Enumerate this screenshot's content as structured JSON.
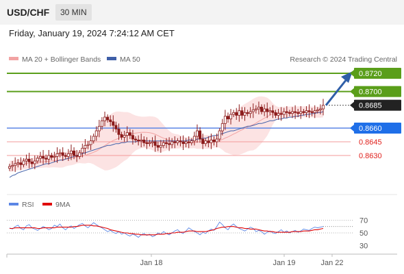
{
  "header": {
    "symbol": "USD/CHF",
    "timeframe": "30 MIN",
    "datetime": "Friday, January 19, 2024 7:24:12 AM CET"
  },
  "legend": {
    "ma20_label": "MA 20 + Bollinger Bands",
    "ma50_label": "MA 50",
    "credit": "Research © 2024 Trading Central",
    "rsi_label": "RSI",
    "rsi_ma_label": "9MA"
  },
  "colors": {
    "resistance": "#5a9e1a",
    "support": "#5b86e5",
    "target_line": "#f39a9a",
    "last_price": "#222222",
    "candle": "#8b1a1a",
    "ma20": "#f2a3a3",
    "ma50": "#3f5fa8",
    "bollinger_fill": "#fbdede",
    "arrow": "#2f5fa8",
    "rsi": "#5b86e5",
    "rsi_ma": "#e00000"
  },
  "chart_data": [
    {
      "type": "candlestick",
      "x_ticks": [
        "Jan 18",
        "Jan 19",
        "Jan 22"
      ],
      "levels": [
        {
          "price": 0.872,
          "label": "0.8720",
          "kind": "resistance"
        },
        {
          "price": 0.87,
          "label": "0.8700",
          "kind": "resistance"
        },
        {
          "price": 0.8685,
          "label": "0.8685",
          "kind": "last"
        },
        {
          "price": 0.866,
          "label": "0.8660",
          "kind": "support"
        },
        {
          "price": 0.8645,
          "label": "0.8645",
          "kind": "target"
        },
        {
          "price": 0.863,
          "label": "0.8630",
          "kind": "target"
        }
      ],
      "close": [
        0.8618,
        0.8619,
        0.8621,
        0.8622,
        0.862,
        0.8624,
        0.8626,
        0.8623,
        0.8621,
        0.8624,
        0.8627,
        0.8629,
        0.8627,
        0.8626,
        0.863,
        0.8628,
        0.8629,
        0.8632,
        0.8633,
        0.863,
        0.8629,
        0.8632,
        0.8635,
        0.863,
        0.8629,
        0.8633,
        0.8638,
        0.8641,
        0.8642,
        0.8646,
        0.8651,
        0.8657,
        0.8662,
        0.8668,
        0.8672,
        0.8669,
        0.8667,
        0.8663,
        0.8659,
        0.8653,
        0.865,
        0.8652,
        0.8655,
        0.8652,
        0.8648,
        0.8647,
        0.8646,
        0.8647,
        0.8644,
        0.8643,
        0.8644,
        0.8645,
        0.8641,
        0.8639,
        0.8641,
        0.8644,
        0.8643,
        0.8642,
        0.8645,
        0.8644,
        0.8646,
        0.8645,
        0.8643,
        0.8645,
        0.8644,
        0.8646,
        0.8651,
        0.8657,
        0.8648,
        0.8643,
        0.8646,
        0.8644,
        0.8647,
        0.8645,
        0.8648,
        0.8657,
        0.8665,
        0.8673,
        0.867,
        0.8675,
        0.8677,
        0.8674,
        0.8679,
        0.8674,
        0.8677,
        0.8676,
        0.8678,
        0.868,
        0.8681,
        0.8683,
        0.8678,
        0.8681,
        0.8678,
        0.8679,
        0.8677,
        0.8674,
        0.8676,
        0.8675,
        0.8678,
        0.8677,
        0.8676,
        0.8678,
        0.8677,
        0.8676,
        0.8678,
        0.8677,
        0.8679,
        0.8678,
        0.8677,
        0.8679,
        0.868,
        0.8681,
        0.8685
      ],
      "ma50": [
        0.8606,
        0.8608,
        0.8609,
        0.8611,
        0.8612,
        0.8613,
        0.8614,
        0.8615,
        0.8616,
        0.8617,
        0.8618,
        0.8619,
        0.862,
        0.8621,
        0.8621,
        0.8622,
        0.8623,
        0.8624,
        0.8625,
        0.8625,
        0.8626,
        0.8627,
        0.8628,
        0.8629,
        0.863,
        0.8631,
        0.8632,
        0.8633,
        0.8634,
        0.8635,
        0.8636,
        0.8637,
        0.8638,
        0.8639,
        0.864,
        0.8641,
        0.8641,
        0.8642,
        0.8643,
        0.8643,
        0.8644,
        0.8644,
        0.8645,
        0.8645,
        0.8645,
        0.8645,
        0.8646,
        0.8646,
        0.8646,
        0.8646,
        0.8646,
        0.8646,
        0.8646,
        0.8646,
        0.8646,
        0.8646,
        0.8646,
        0.8646,
        0.8646,
        0.8646,
        0.8646,
        0.8646,
        0.8646,
        0.8646,
        0.8647,
        0.8647,
        0.8647,
        0.8648,
        0.8648,
        0.8649,
        0.8649,
        0.865,
        0.8651,
        0.8652,
        0.8652,
        0.8653,
        0.8654,
        0.8655,
        0.8656,
        0.8657,
        0.8657,
        0.8658,
        0.8659,
        0.866,
        0.8661,
        0.8662,
        0.8662,
        0.8663,
        0.8664,
        0.8665,
        0.8665,
        0.8666,
        0.8667,
        0.8668,
        0.8668,
        0.8669,
        0.867,
        0.867,
        0.8671,
        0.8671,
        0.8672,
        0.8672,
        0.8673,
        0.8673,
        0.8674,
        0.8674,
        0.8675,
        0.8675,
        0.8676,
        0.8676,
        0.8677,
        0.8677,
        0.8678
      ]
    },
    {
      "type": "line",
      "name": "RSI",
      "y_ticks": [
        70,
        50,
        30
      ],
      "ylim": [
        20,
        80
      ],
      "rsi": [
        58,
        56,
        60,
        62,
        57,
        55,
        61,
        63,
        58,
        56,
        54,
        57,
        60,
        58,
        55,
        57,
        62,
        60,
        64,
        58,
        55,
        59,
        61,
        57,
        60,
        63,
        65,
        61,
        58,
        62,
        66,
        63,
        60,
        58,
        55,
        52,
        54,
        51,
        49,
        52,
        48,
        50,
        47,
        45,
        48,
        46,
        43,
        47,
        49,
        46,
        48,
        44,
        46,
        50,
        48,
        52,
        49,
        47,
        50,
        53,
        55,
        51,
        49,
        53,
        58,
        55,
        52,
        50,
        47,
        51,
        49,
        53,
        56,
        54,
        60,
        67,
        63,
        58,
        55,
        61,
        64,
        60,
        57,
        55,
        53,
        56,
        59,
        57,
        52,
        54,
        52,
        48,
        51,
        53,
        50,
        49,
        52,
        55,
        51,
        53,
        50,
        52,
        54,
        51,
        53,
        56,
        55,
        54,
        57,
        59,
        58,
        59,
        60
      ],
      "rsi_ma": [
        57,
        57,
        58,
        58,
        58,
        58,
        58,
        58,
        58,
        58,
        57,
        57,
        58,
        58,
        58,
        58,
        58,
        59,
        59,
        59,
        59,
        59,
        59,
        60,
        60,
        61,
        62,
        62,
        62,
        62,
        61,
        61,
        60,
        59,
        58,
        57,
        55,
        54,
        53,
        52,
        51,
        50,
        50,
        49,
        49,
        48,
        48,
        47,
        47,
        47,
        47,
        47,
        47,
        48,
        48,
        48,
        49,
        49,
        50,
        50,
        51,
        51,
        51,
        52,
        53,
        53,
        53,
        52,
        52,
        52,
        52,
        53,
        54,
        55,
        57,
        58,
        59,
        59,
        60,
        60,
        60,
        59,
        58,
        58,
        57,
        57,
        56,
        56,
        56,
        55,
        54,
        53,
        53,
        52,
        52,
        51,
        51,
        51,
        51,
        51,
        51,
        52,
        52,
        52,
        52,
        53,
        53,
        53,
        54,
        55,
        55,
        56,
        57
      ]
    }
  ]
}
